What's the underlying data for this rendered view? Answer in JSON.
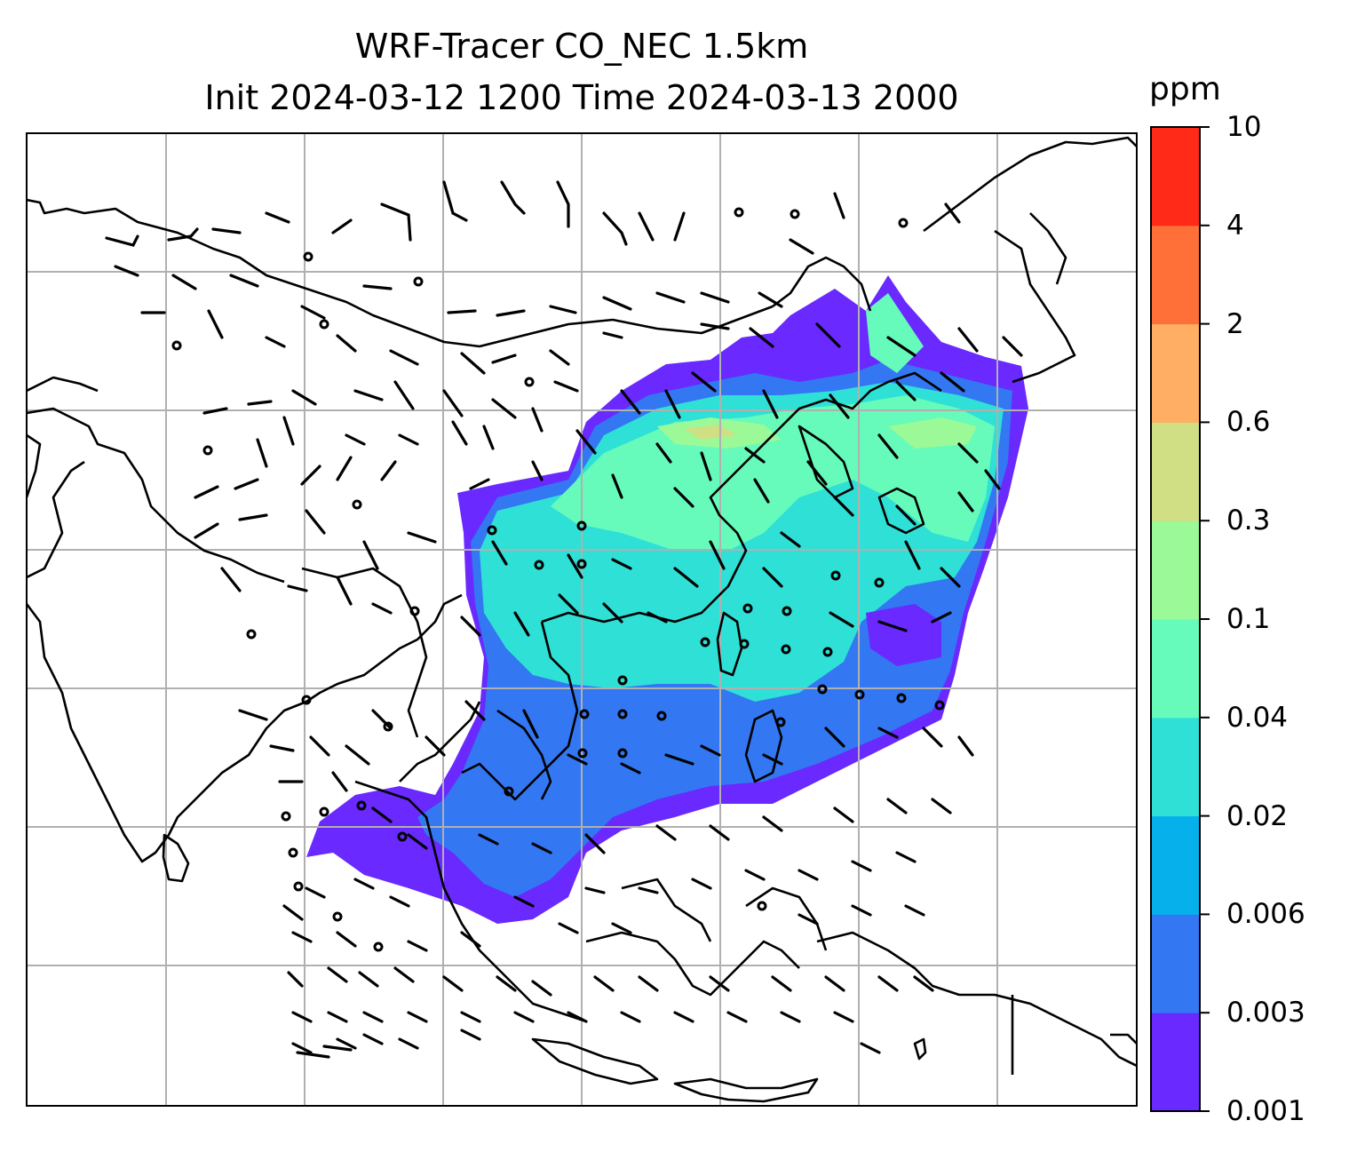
{
  "title": {
    "line1": "WRF-Tracer CO_NEC 1.5km",
    "line2": "Init 2024-03-12 1200 Time 2024-03-13 2000"
  },
  "colorbar": {
    "unit": "ppm",
    "levels": [
      "0.001",
      "0.003",
      "0.006",
      "0.02",
      "0.04",
      "0.1",
      "0.3",
      "0.6",
      "2",
      "4",
      "10"
    ],
    "colors": [
      "#6929ff",
      "#3377f2",
      "#05b0eb",
      "#2fe0d7",
      "#66fbbb",
      "#9bfa97",
      "#d0de84",
      "#ffae63",
      "#ff7038",
      "#ff2a17"
    ]
  },
  "map": {
    "gridlines": true,
    "coastline_color": "#000000",
    "wind_barb_color": "#000000",
    "grid_color": "#b0b0b0",
    "field_colors": {
      "0.001-0.003": "#6929ff",
      "0.003-0.006": "#3377f2",
      "0.02-0.04": "#2fe0d7",
      "0.04-0.1": "#66fbbb",
      "0.1-0.3": "#9bfa97",
      "0.3-0.6": "#d0de84"
    }
  }
}
